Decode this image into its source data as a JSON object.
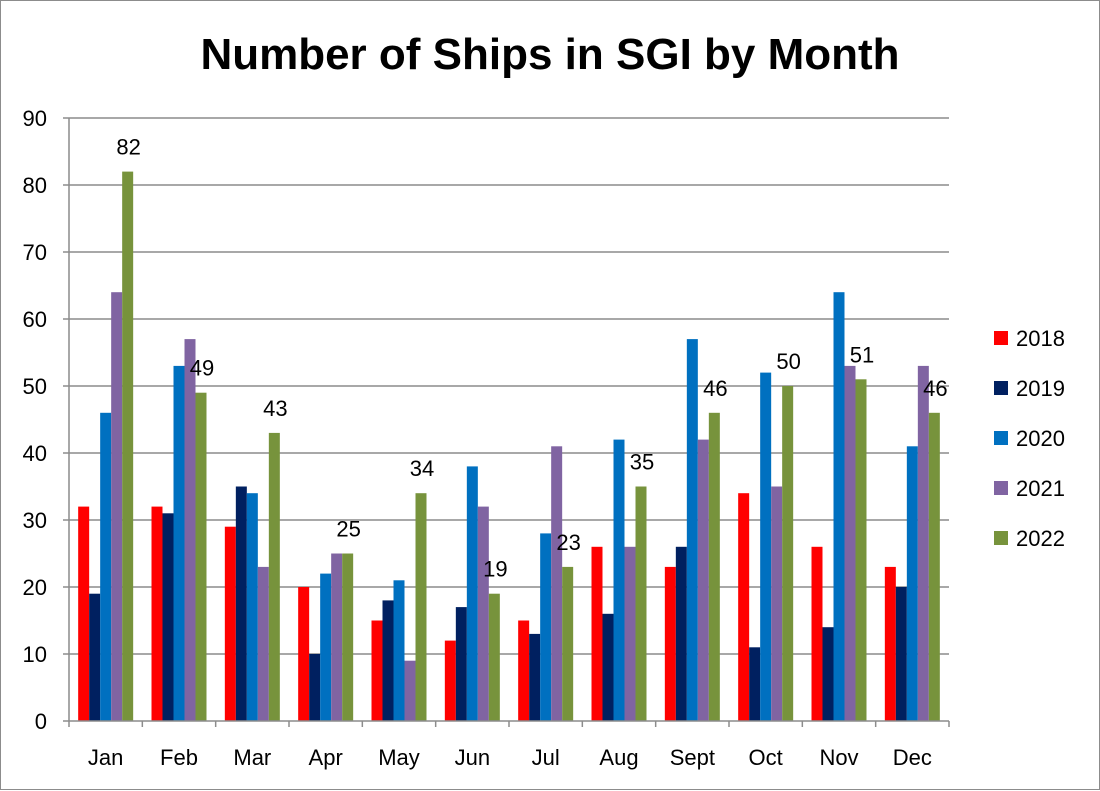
{
  "chart_data": {
    "type": "bar",
    "title": "Number of Ships in SGI by Month",
    "xlabel": "",
    "ylabel": "",
    "ylim": [
      0,
      90
    ],
    "yticks": [
      0,
      10,
      20,
      30,
      40,
      50,
      60,
      70,
      80,
      90
    ],
    "grid": true,
    "legend": "right",
    "categories": [
      "Jan",
      "Feb",
      "Mar",
      "Apr",
      "May",
      "Jun",
      "Jul",
      "Aug",
      "Sept",
      "Oct",
      "Nov",
      "Dec"
    ],
    "series": [
      {
        "name": "2018",
        "color": "#ff0000",
        "values": [
          32,
          32,
          29,
          20,
          15,
          12,
          15,
          26,
          23,
          34,
          26,
          23
        ]
      },
      {
        "name": "2019",
        "color": "#002060",
        "values": [
          19,
          31,
          35,
          10,
          18,
          17,
          13,
          16,
          26,
          11,
          14,
          20
        ]
      },
      {
        "name": "2020",
        "color": "#0070c0",
        "values": [
          46,
          53,
          34,
          22,
          21,
          38,
          28,
          42,
          57,
          52,
          64,
          41
        ]
      },
      {
        "name": "2021",
        "color": "#8064a2",
        "values": [
          64,
          57,
          23,
          25,
          9,
          32,
          41,
          26,
          42,
          35,
          53,
          53
        ]
      },
      {
        "name": "2022",
        "color": "#77933c",
        "values": [
          82,
          49,
          43,
          25,
          34,
          19,
          23,
          35,
          46,
          50,
          51,
          46
        ],
        "data_labels": true
      }
    ]
  }
}
